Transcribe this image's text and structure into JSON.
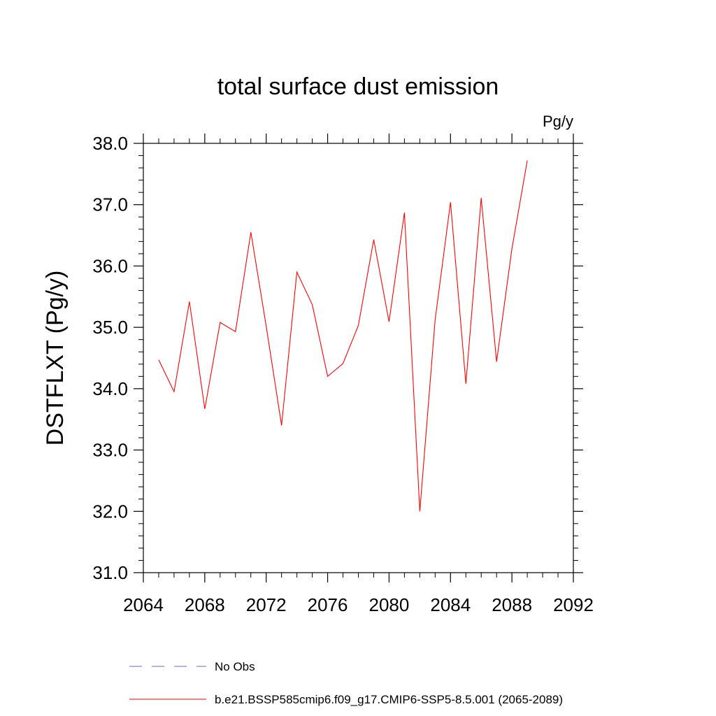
{
  "chart_data": {
    "type": "line",
    "title": "total surface dust emission",
    "units": "Pg/y",
    "ylabel": "DSTFLXT  (Pg/y)",
    "xlabel": "",
    "xlim": [
      2064,
      2092
    ],
    "ylim": [
      31.0,
      38.0
    ],
    "x_ticks": [
      2064,
      2068,
      2072,
      2076,
      2080,
      2084,
      2088,
      2092
    ],
    "y_ticks": [
      31.0,
      32.0,
      33.0,
      34.0,
      35.0,
      36.0,
      37.0,
      38.0
    ],
    "x_tick_labels": [
      "2064",
      "2068",
      "2072",
      "2076",
      "2080",
      "2084",
      "2088",
      "2092"
    ],
    "y_tick_labels": [
      "31.0",
      "32.0",
      "33.0",
      "34.0",
      "35.0",
      "36.0",
      "37.0",
      "38.0"
    ],
    "grid": false,
    "series": [
      {
        "name": "b.e21.BSSP585cmip6.f09_g17.CMIP6-SSP5-8.5.001 (2065-2089)",
        "color": "#ff0000",
        "dash": "solid",
        "x": [
          2065,
          2066,
          2067,
          2068,
          2069,
          2070,
          2071,
          2072,
          2073,
          2074,
          2075,
          2076,
          2077,
          2078,
          2079,
          2080,
          2081,
          2082,
          2083,
          2084,
          2085,
          2086,
          2087,
          2088,
          2089
        ],
        "y": [
          34.47,
          33.95,
          35.42,
          33.67,
          35.08,
          34.93,
          36.55,
          35.02,
          33.4,
          35.9,
          35.37,
          34.2,
          34.41,
          35.03,
          36.43,
          35.09,
          36.87,
          32.0,
          35.12,
          37.04,
          34.08,
          37.11,
          34.44,
          36.28,
          37.72
        ]
      }
    ],
    "legend": {
      "placement": "bottom",
      "entries": [
        {
          "label": "No Obs",
          "color": "#6666cc",
          "dash": "dashed"
        },
        {
          "label": "b.e21.BSSP585cmip6.f09_g17.CMIP6-SSP5-8.5.001 (2065-2089)",
          "color": "#ff0000",
          "dash": "solid"
        }
      ]
    }
  }
}
